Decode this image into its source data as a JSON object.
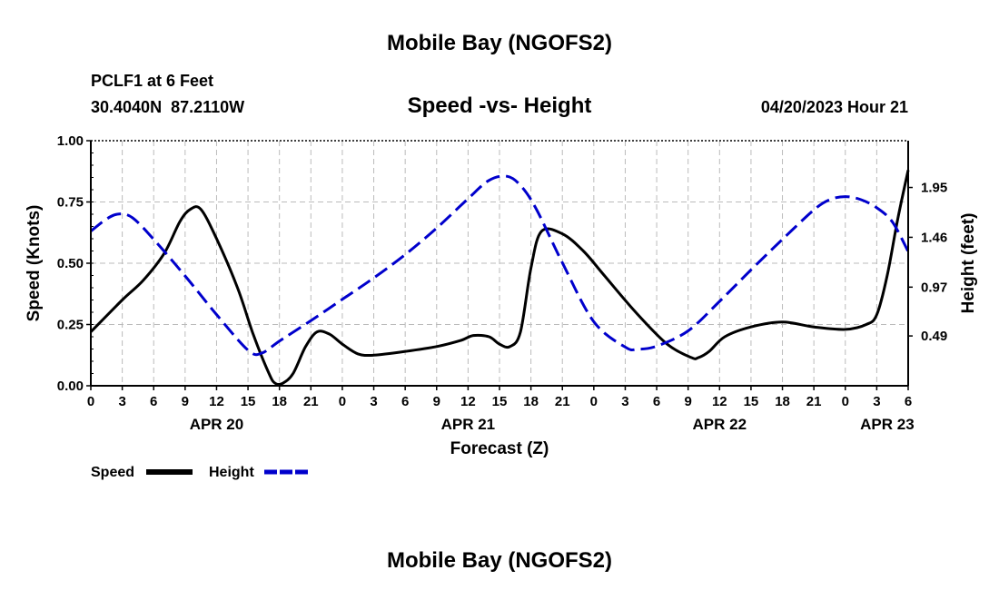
{
  "title": "Mobile Bay (NGOFS2)",
  "footer_title": "Mobile Bay (NGOFS2)",
  "station": {
    "name_line": "PCLF1 at 6 Feet",
    "coords": "30.4040N  87.2110W"
  },
  "subtitle": "Speed -vs- Height",
  "timestamp": "04/20/2023 Hour 21",
  "colors": {
    "speed": "#000000",
    "height": "#0000cc",
    "grid": "#bbbbbb"
  },
  "chart_data": {
    "type": "line",
    "title": "Speed -vs- Height",
    "xlabel": "Forecast (Z)",
    "ylabel": "Speed (Knots)",
    "y2label": "Height (feet)",
    "x_unit": "hours from APR 20 00Z",
    "xlim": [
      0,
      78
    ],
    "ylim": [
      0,
      1.0
    ],
    "y2lim": [
      0.0,
      2.41
    ],
    "grid": true,
    "legend_position": "bottom-left",
    "x_ticks": [
      {
        "x": 0,
        "label": "0"
      },
      {
        "x": 3,
        "label": "3"
      },
      {
        "x": 6,
        "label": "6"
      },
      {
        "x": 9,
        "label": "9"
      },
      {
        "x": 12,
        "label": "12"
      },
      {
        "x": 15,
        "label": "15"
      },
      {
        "x": 18,
        "label": "18"
      },
      {
        "x": 21,
        "label": "21"
      },
      {
        "x": 24,
        "label": "0"
      },
      {
        "x": 27,
        "label": "3"
      },
      {
        "x": 30,
        "label": "6"
      },
      {
        "x": 33,
        "label": "9"
      },
      {
        "x": 36,
        "label": "12"
      },
      {
        "x": 39,
        "label": "15"
      },
      {
        "x": 42,
        "label": "18"
      },
      {
        "x": 45,
        "label": "21"
      },
      {
        "x": 48,
        "label": "0"
      },
      {
        "x": 51,
        "label": "3"
      },
      {
        "x": 54,
        "label": "6"
      },
      {
        "x": 57,
        "label": "9"
      },
      {
        "x": 60,
        "label": "12"
      },
      {
        "x": 63,
        "label": "15"
      },
      {
        "x": 66,
        "label": "18"
      },
      {
        "x": 69,
        "label": "21"
      },
      {
        "x": 72,
        "label": "0"
      },
      {
        "x": 75,
        "label": "3"
      },
      {
        "x": 78,
        "label": "6"
      }
    ],
    "date_labels": [
      {
        "x": 12,
        "label": "APR 20"
      },
      {
        "x": 36,
        "label": "APR 21"
      },
      {
        "x": 60,
        "label": "APR 22"
      },
      {
        "x": 76,
        "label": "APR 23"
      }
    ],
    "y_ticks": [
      {
        "v": 0.0,
        "label": "0.00"
      },
      {
        "v": 0.25,
        "label": "0.25"
      },
      {
        "v": 0.5,
        "label": "0.50"
      },
      {
        "v": 0.75,
        "label": "0.75"
      },
      {
        "v": 1.0,
        "label": "1.00"
      }
    ],
    "y2_ticks": [
      {
        "v": 0.49,
        "label": "0.49"
      },
      {
        "v": 0.97,
        "label": "0.97"
      },
      {
        "v": 1.46,
        "label": "1.46"
      },
      {
        "v": 1.95,
        "label": "1.95"
      }
    ],
    "series": [
      {
        "name": "Speed",
        "axis": "left",
        "style": "solid",
        "x": [
          0,
          3,
          5,
          7,
          8.5,
          9.5,
          10.5,
          12,
          14,
          15.5,
          17,
          17.6,
          18.3,
          19.3,
          20.5,
          21.6,
          22.8,
          24,
          25.5,
          27,
          30,
          33,
          35.3,
          36.5,
          38,
          39,
          40,
          41,
          42,
          43,
          45,
          47,
          49,
          52,
          55,
          57.3,
          58,
          59,
          60.5,
          63,
          66,
          69,
          72,
          74,
          75,
          76,
          77,
          78
        ],
        "y": [
          0.22,
          0.35,
          0.43,
          0.54,
          0.67,
          0.72,
          0.72,
          0.6,
          0.4,
          0.21,
          0.05,
          0.01,
          0.01,
          0.05,
          0.16,
          0.22,
          0.21,
          0.17,
          0.13,
          0.125,
          0.14,
          0.16,
          0.185,
          0.205,
          0.2,
          0.17,
          0.16,
          0.22,
          0.48,
          0.63,
          0.62,
          0.55,
          0.45,
          0.3,
          0.17,
          0.115,
          0.115,
          0.14,
          0.2,
          0.24,
          0.26,
          0.24,
          0.23,
          0.25,
          0.29,
          0.45,
          0.68,
          0.88
        ]
      },
      {
        "name": "Height",
        "axis": "right",
        "style": "dashed",
        "x": [
          0,
          1.5,
          2.7,
          4,
          6,
          9,
          12,
          15,
          16.3,
          18,
          21,
          24,
          27,
          30,
          33,
          36,
          38,
          39.7,
          41,
          42.5,
          45,
          48,
          51,
          52.2,
          54,
          57,
          60,
          63,
          66,
          69,
          70.5,
          72,
          73.5,
          75,
          76.5,
          78
        ],
        "y": [
          1.52,
          1.64,
          1.69,
          1.65,
          1.44,
          1.08,
          0.7,
          0.35,
          0.32,
          0.44,
          0.64,
          0.85,
          1.06,
          1.29,
          1.55,
          1.84,
          2.02,
          2.06,
          1.97,
          1.74,
          1.21,
          0.63,
          0.38,
          0.36,
          0.39,
          0.54,
          0.83,
          1.14,
          1.44,
          1.73,
          1.83,
          1.86,
          1.83,
          1.75,
          1.61,
          1.32
        ]
      }
    ]
  }
}
